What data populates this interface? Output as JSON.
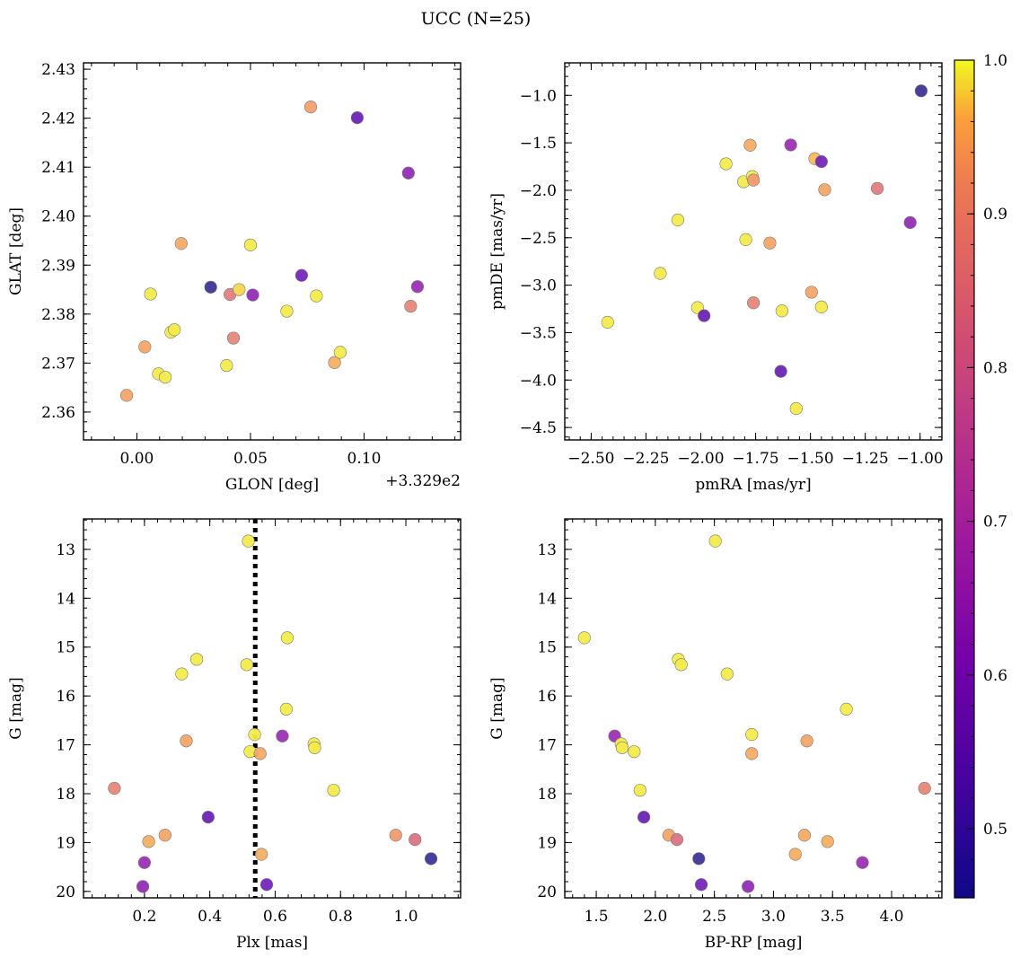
{
  "figure": {
    "title": "UCC (N=25)"
  },
  "chart_data": [
    {
      "type": "scatter",
      "id": "glon-glat",
      "xlabel": "GLON [deg]",
      "ylabel": "GLAT [deg]",
      "x_offset_label": "+3.329e2",
      "xlim": [
        -0.0235,
        0.1425
      ],
      "ylim": [
        2.3543,
        2.4313
      ],
      "xticks": [
        0.0,
        0.05,
        0.1
      ],
      "xtick_labels": [
        "0.00",
        "0.05",
        "0.10"
      ],
      "yticks": [
        2.36,
        2.37,
        2.38,
        2.39,
        2.4,
        2.41,
        2.42,
        2.43
      ],
      "ytick_labels": [
        "2.36",
        "2.37",
        "2.38",
        "2.39",
        "2.40",
        "2.41",
        "2.42",
        "2.43"
      ],
      "points": [
        {
          "x": -0.0045,
          "y": 2.3634,
          "p": 0.86
        },
        {
          "x": 0.0035,
          "y": 2.3733,
          "p": 0.86
        },
        {
          "x": 0.006,
          "y": 2.3841,
          "p": 0.98
        },
        {
          "x": 0.0095,
          "y": 2.3678,
          "p": 0.98
        },
        {
          "x": 0.0125,
          "y": 2.3671,
          "p": 0.98
        },
        {
          "x": 0.015,
          "y": 2.3763,
          "p": 0.98
        },
        {
          "x": 0.0165,
          "y": 2.3768,
          "p": 0.98
        },
        {
          "x": 0.0195,
          "y": 2.3944,
          "p": 0.87
        },
        {
          "x": 0.0325,
          "y": 2.3855,
          "p": 0.46
        },
        {
          "x": 0.0395,
          "y": 2.3695,
          "p": 0.98
        },
        {
          "x": 0.041,
          "y": 2.384,
          "p": 0.78
        },
        {
          "x": 0.0425,
          "y": 2.3751,
          "p": 0.8
        },
        {
          "x": 0.045,
          "y": 2.385,
          "p": 0.95
        },
        {
          "x": 0.05,
          "y": 2.3941,
          "p": 0.98
        },
        {
          "x": 0.051,
          "y": 2.3839,
          "p": 0.62
        },
        {
          "x": 0.066,
          "y": 2.3806,
          "p": 0.98
        },
        {
          "x": 0.0725,
          "y": 2.3879,
          "p": 0.58
        },
        {
          "x": 0.0765,
          "y": 2.4223,
          "p": 0.85
        },
        {
          "x": 0.079,
          "y": 2.3837,
          "p": 0.98
        },
        {
          "x": 0.087,
          "y": 2.3701,
          "p": 0.88
        },
        {
          "x": 0.0895,
          "y": 2.3722,
          "p": 0.98
        },
        {
          "x": 0.097,
          "y": 2.4201,
          "p": 0.56
        },
        {
          "x": 0.1195,
          "y": 2.4088,
          "p": 0.62
        },
        {
          "x": 0.1205,
          "y": 2.3816,
          "p": 0.8
        },
        {
          "x": 0.1235,
          "y": 2.3856,
          "p": 0.63
        }
      ]
    },
    {
      "type": "scatter",
      "id": "pmra-pmde",
      "xlabel": "pmRA [mas/yr]",
      "ylabel": "pmDE [mas/yr]",
      "xlim": [
        -2.6205,
        -0.9005
      ],
      "ylim": [
        -4.6314,
        -0.6569
      ],
      "xticks": [
        -2.5,
        -2.25,
        -2.0,
        -1.75,
        -1.5,
        -1.25,
        -1.0
      ],
      "xtick_labels": [
        "−2.50",
        "−2.25",
        "−2.00",
        "−1.75",
        "−1.50",
        "−1.25",
        "−1.00"
      ],
      "yticks": [
        -4.5,
        -4.0,
        -3.5,
        -3.0,
        -2.5,
        -2.0,
        -1.5,
        -1.0
      ],
      "ytick_labels": [
        "−4.5",
        "−4.0",
        "−3.5",
        "−3.0",
        "−2.5",
        "−2.0",
        "−1.5",
        "−1.0"
      ],
      "points": [
        {
          "x": -2.425,
          "y": -3.392,
          "p": 0.98
        },
        {
          "x": -2.185,
          "y": -2.876,
          "p": 0.98
        },
        {
          "x": -2.105,
          "y": -2.313,
          "p": 0.98
        },
        {
          "x": -2.015,
          "y": -3.237,
          "p": 0.98
        },
        {
          "x": -1.985,
          "y": -3.322,
          "p": 0.56
        },
        {
          "x": -1.885,
          "y": -1.721,
          "p": 0.98
        },
        {
          "x": -1.805,
          "y": -1.91,
          "p": 0.98
        },
        {
          "x": -1.795,
          "y": -2.52,
          "p": 0.98
        },
        {
          "x": -1.775,
          "y": -1.525,
          "p": 0.87
        },
        {
          "x": -1.765,
          "y": -1.855,
          "p": 0.98
        },
        {
          "x": -1.76,
          "y": -1.893,
          "p": 0.84
        },
        {
          "x": -1.76,
          "y": -3.186,
          "p": 0.8
        },
        {
          "x": -1.685,
          "y": -2.556,
          "p": 0.86
        },
        {
          "x": -1.63,
          "y": -3.271,
          "p": 0.98
        },
        {
          "x": -1.635,
          "y": -3.909,
          "p": 0.56
        },
        {
          "x": -1.59,
          "y": -1.522,
          "p": 0.63
        },
        {
          "x": -1.565,
          "y": -4.3,
          "p": 0.98
        },
        {
          "x": -1.495,
          "y": -3.074,
          "p": 0.86
        },
        {
          "x": -1.48,
          "y": -1.667,
          "p": 0.9
        },
        {
          "x": -1.45,
          "y": -1.698,
          "p": 0.58
        },
        {
          "x": -1.45,
          "y": -3.23,
          "p": 0.98
        },
        {
          "x": -1.435,
          "y": -1.994,
          "p": 0.86
        },
        {
          "x": -1.195,
          "y": -1.98,
          "p": 0.78
        },
        {
          "x": -1.045,
          "y": -2.34,
          "p": 0.62
        },
        {
          "x": -0.995,
          "y": -0.952,
          "p": 0.46
        }
      ]
    },
    {
      "type": "scatter",
      "id": "plx-g",
      "xlabel": "Plx [mas]",
      "ylabel": "G [mag]",
      "xlim": [
        0.0135,
        1.1675
      ],
      "ylim": [
        20.1316,
        12.3776
      ],
      "xticks": [
        0.2,
        0.4,
        0.6,
        0.8,
        1.0
      ],
      "xtick_labels": [
        "0.2",
        "0.4",
        "0.6",
        "0.8",
        "1.0"
      ],
      "yticks": [
        13,
        14,
        15,
        16,
        17,
        18,
        19,
        20
      ],
      "ytick_labels": [
        "13",
        "14",
        "15",
        "16",
        "17",
        "18",
        "19",
        "20"
      ],
      "vline": 0.539,
      "points": [
        {
          "x": 0.108,
          "y": 17.89,
          "p": 0.8
        },
        {
          "x": 0.195,
          "y": 19.9,
          "p": 0.62
        },
        {
          "x": 0.2,
          "y": 19.41,
          "p": 0.63
        },
        {
          "x": 0.213,
          "y": 18.98,
          "p": 0.88
        },
        {
          "x": 0.263,
          "y": 18.85,
          "p": 0.86
        },
        {
          "x": 0.314,
          "y": 15.55,
          "p": 0.98
        },
        {
          "x": 0.328,
          "y": 16.92,
          "p": 0.86
        },
        {
          "x": 0.36,
          "y": 15.25,
          "p": 0.98
        },
        {
          "x": 0.395,
          "y": 18.48,
          "p": 0.56
        },
        {
          "x": 0.513,
          "y": 15.36,
          "p": 0.98
        },
        {
          "x": 0.518,
          "y": 12.83,
          "p": 0.98
        },
        {
          "x": 0.523,
          "y": 17.14,
          "p": 0.98
        },
        {
          "x": 0.537,
          "y": 16.79,
          "p": 0.98
        },
        {
          "x": 0.554,
          "y": 17.18,
          "p": 0.87
        },
        {
          "x": 0.558,
          "y": 19.24,
          "p": 0.88
        },
        {
          "x": 0.574,
          "y": 19.86,
          "p": 0.58
        },
        {
          "x": 0.622,
          "y": 16.82,
          "p": 0.63
        },
        {
          "x": 0.634,
          "y": 16.27,
          "p": 0.98
        },
        {
          "x": 0.637,
          "y": 14.81,
          "p": 0.98
        },
        {
          "x": 0.719,
          "y": 16.98,
          "p": 0.98
        },
        {
          "x": 0.721,
          "y": 17.06,
          "p": 0.98
        },
        {
          "x": 0.779,
          "y": 17.93,
          "p": 0.98
        },
        {
          "x": 0.969,
          "y": 18.85,
          "p": 0.84
        },
        {
          "x": 1.028,
          "y": 18.94,
          "p": 0.76
        },
        {
          "x": 1.077,
          "y": 19.33,
          "p": 0.46
        }
      ]
    },
    {
      "type": "scatter",
      "id": "bprp-g",
      "xlabel": "BP-RP [mag]",
      "ylabel": "G [mag]",
      "xlim": [
        1.2335,
        4.4255
      ],
      "ylim": [
        20.1316,
        12.3776
      ],
      "xticks": [
        1.5,
        2.0,
        2.5,
        3.0,
        3.5,
        4.0
      ],
      "xtick_labels": [
        "1.5",
        "2.0",
        "2.5",
        "3.0",
        "3.5",
        "4.0"
      ],
      "yticks": [
        13,
        14,
        15,
        16,
        17,
        18,
        19,
        20
      ],
      "ytick_labels": [
        "13",
        "14",
        "15",
        "16",
        "17",
        "18",
        "19",
        "20"
      ],
      "points": [
        {
          "x": 1.399,
          "y": 14.81,
          "p": 0.98
        },
        {
          "x": 1.656,
          "y": 16.82,
          "p": 0.63
        },
        {
          "x": 1.711,
          "y": 16.98,
          "p": 0.98
        },
        {
          "x": 1.72,
          "y": 17.06,
          "p": 0.98
        },
        {
          "x": 1.821,
          "y": 17.14,
          "p": 0.98
        },
        {
          "x": 1.871,
          "y": 17.93,
          "p": 0.98
        },
        {
          "x": 1.903,
          "y": 18.48,
          "p": 0.56
        },
        {
          "x": 2.114,
          "y": 18.85,
          "p": 0.86
        },
        {
          "x": 2.183,
          "y": 18.94,
          "p": 0.76
        },
        {
          "x": 2.195,
          "y": 15.25,
          "p": 0.98
        },
        {
          "x": 2.219,
          "y": 15.36,
          "p": 0.98
        },
        {
          "x": 2.368,
          "y": 19.33,
          "p": 0.46
        },
        {
          "x": 2.389,
          "y": 19.86,
          "p": 0.58
        },
        {
          "x": 2.508,
          "y": 12.83,
          "p": 0.98
        },
        {
          "x": 2.608,
          "y": 15.55,
          "p": 0.98
        },
        {
          "x": 2.785,
          "y": 19.9,
          "p": 0.62
        },
        {
          "x": 2.816,
          "y": 16.79,
          "p": 0.98
        },
        {
          "x": 2.816,
          "y": 17.18,
          "p": 0.87
        },
        {
          "x": 3.185,
          "y": 19.24,
          "p": 0.88
        },
        {
          "x": 3.262,
          "y": 18.85,
          "p": 0.87
        },
        {
          "x": 3.283,
          "y": 16.92,
          "p": 0.86
        },
        {
          "x": 3.458,
          "y": 18.98,
          "p": 0.88
        },
        {
          "x": 3.617,
          "y": 16.27,
          "p": 0.98
        },
        {
          "x": 3.753,
          "y": 19.41,
          "p": 0.63
        },
        {
          "x": 4.279,
          "y": 17.89,
          "p": 0.8
        }
      ]
    }
  ],
  "colorbar": {
    "colormap": "plasma",
    "vmin": 0.455,
    "vmax": 1.0,
    "ticks": [
      0.5,
      0.6,
      0.7,
      0.8,
      0.9,
      1.0
    ],
    "tick_labels": [
      "0.5",
      "0.6",
      "0.7",
      "0.8",
      "0.9",
      "1.0"
    ]
  }
}
